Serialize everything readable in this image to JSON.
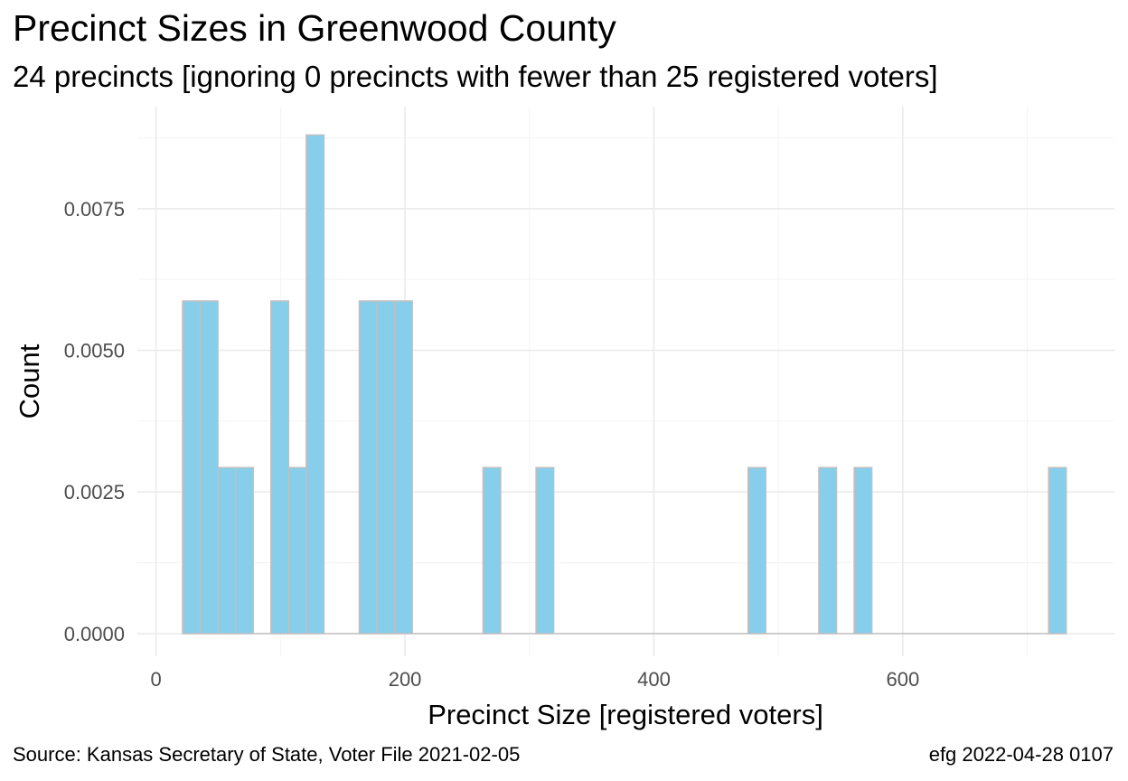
{
  "chart_data": {
    "type": "bar",
    "title": "Precinct Sizes in Greenwood County",
    "subtitle": "24 precincts [ignoring 0 precincts with fewer than 25 registered voters]",
    "xlabel": "Precinct Size [registered voters]",
    "ylabel": "Count",
    "xlim": [
      -15,
      770
    ],
    "ylim": [
      -0.0004,
      0.0093
    ],
    "x_ticks": [
      0,
      200,
      400,
      600
    ],
    "x_tick_labels": [
      "0",
      "200",
      "400",
      "600"
    ],
    "y_ticks": [
      0.0,
      0.0025,
      0.005,
      0.0075
    ],
    "y_tick_labels": [
      "0.0000",
      "0.0025",
      "0.0050",
      "0.0075"
    ],
    "grid": true,
    "bin_width": 14.2,
    "bins": [
      {
        "x0": 21.3,
        "value": 0.00587
      },
      {
        "x0": 35.5,
        "value": 0.00587
      },
      {
        "x0": 49.7,
        "value": 0.00293
      },
      {
        "x0": 63.9,
        "value": 0.00293
      },
      {
        "x0": 92.3,
        "value": 0.00587
      },
      {
        "x0": 106.5,
        "value": 0.00293
      },
      {
        "x0": 120.7,
        "value": 0.0088
      },
      {
        "x0": 163.3,
        "value": 0.00587
      },
      {
        "x0": 177.5,
        "value": 0.00587
      },
      {
        "x0": 191.7,
        "value": 0.00587
      },
      {
        "x0": 262.7,
        "value": 0.00293
      },
      {
        "x0": 305.3,
        "value": 0.00293
      },
      {
        "x0": 475.7,
        "value": 0.00293
      },
      {
        "x0": 532.5,
        "value": 0.00293
      },
      {
        "x0": 560.9,
        "value": 0.00293
      },
      {
        "x0": 717.1,
        "value": 0.00293
      }
    ],
    "range": [
      21.3,
      731.3
    ]
  },
  "caption": {
    "source": "Source:  Kansas Secretary of State, Voter File  2021-02-05",
    "stamp": "efg 2022-04-28 0107"
  }
}
